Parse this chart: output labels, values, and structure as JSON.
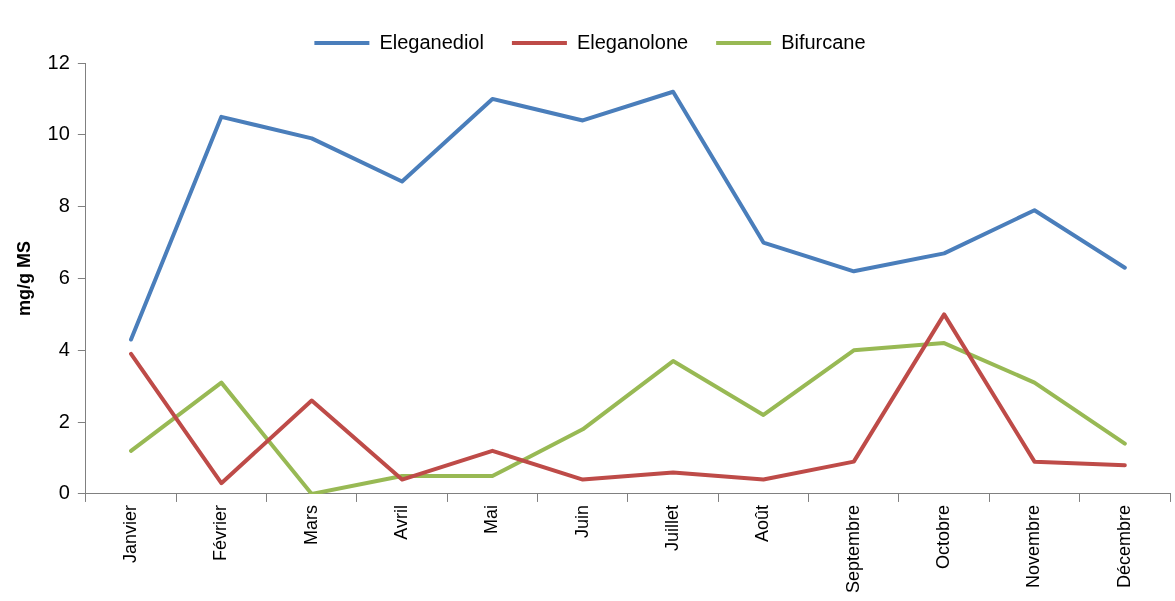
{
  "chart_data": {
    "type": "line",
    "ylabel": "mg/g MS",
    "categories": [
      "Janvier",
      "Février",
      "Mars",
      "Avril",
      "Mai",
      "Juin",
      "Juillet",
      "Août",
      "Septembre",
      "Octobre",
      "Novembre",
      "Décembre"
    ],
    "series": [
      {
        "name": "Eleganediol",
        "color": "#4a7ebb",
        "values": [
          4.3,
          10.5,
          9.9,
          8.7,
          11.0,
          10.4,
          11.2,
          7.0,
          6.2,
          6.7,
          7.9,
          6.3
        ]
      },
      {
        "name": "Eleganolone",
        "color": "#be4b48",
        "values": [
          3.9,
          0.3,
          2.6,
          0.4,
          1.2,
          0.4,
          0.6,
          0.4,
          0.9,
          5.0,
          0.9,
          0.8
        ]
      },
      {
        "name": "Bifurcane",
        "color": "#98b954",
        "values": [
          1.2,
          3.1,
          0.0,
          0.5,
          0.5,
          1.8,
          3.7,
          2.2,
          4.0,
          4.2,
          3.1,
          1.4
        ]
      }
    ],
    "ylim": [
      0,
      12
    ],
    "yticks": [
      0,
      2,
      4,
      6,
      8,
      10,
      12
    ],
    "grid": false,
    "legend": "top",
    "marker": "none",
    "line_style": "solid"
  }
}
